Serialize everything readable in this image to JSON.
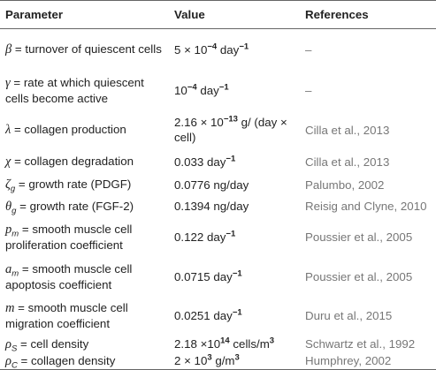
{
  "table": {
    "headers": [
      "Parameter",
      "Value",
      "References"
    ],
    "rows": [
      {
        "parameter": [
          {
            "i": "β"
          },
          {
            "text": " = turnover of quiescent cells"
          }
        ],
        "value": [
          {
            "text": "5 × 10"
          },
          {
            "sup": "−4"
          },
          {
            "text": " day"
          },
          {
            "sup": "−1"
          }
        ],
        "reference": "–"
      },
      {
        "parameter": [
          {
            "i": "γ"
          },
          {
            "text": " = rate at which quiescent cells become active"
          }
        ],
        "value": [
          {
            "text": "10"
          },
          {
            "sup": "−4"
          },
          {
            "text": " day"
          },
          {
            "sup": "−1"
          }
        ],
        "reference": "–"
      },
      {
        "parameter": [
          {
            "i": "λ"
          },
          {
            "text": " = collagen production"
          }
        ],
        "value": [
          {
            "text": "2.16 × 10"
          },
          {
            "sup": "−13"
          },
          {
            "text": " g/ (day × cell)"
          }
        ],
        "reference": "Cilla et al., 2013"
      },
      {
        "parameter": [
          {
            "i": "χ"
          },
          {
            "text": " = collagen degradation"
          }
        ],
        "value": [
          {
            "text": "0.033 day"
          },
          {
            "sup": "−1"
          }
        ],
        "reference": "Cilla et al., 2013"
      },
      {
        "parameter": [
          {
            "i": "ζ"
          },
          {
            "sub": "g"
          },
          {
            "text": " = growth rate (PDGF)"
          }
        ],
        "value": [
          {
            "text": "0.0776 ng/day"
          }
        ],
        "reference": "Palumbo, 2002"
      },
      {
        "parameter": [
          {
            "i": "θ"
          },
          {
            "sub": "g"
          },
          {
            "text": " = growth rate (FGF-2)"
          }
        ],
        "value": [
          {
            "text": "0.1394 ng/day"
          }
        ],
        "reference": "Reisig and Clyne, 2010"
      },
      {
        "parameter": [
          {
            "i": "p"
          },
          {
            "sub": "m"
          },
          {
            "text": " = smooth muscle cell proliferation coefficient"
          }
        ],
        "value": [
          {
            "text": "0.122 day"
          },
          {
            "sup": "−1"
          }
        ],
        "reference": "Poussier et al., 2005"
      },
      {
        "parameter": [
          {
            "i": "a"
          },
          {
            "sub": "m"
          },
          {
            "text": " = smooth muscle cell apoptosis coefficient"
          }
        ],
        "value": [
          {
            "text": "0.0715 day"
          },
          {
            "sup": "−1"
          }
        ],
        "reference": "Poussier et al., 2005"
      },
      {
        "parameter": [
          {
            "i": "m"
          },
          {
            "text": " = smooth muscle cell migration coefficient"
          }
        ],
        "value": [
          {
            "text": "0.0251 day"
          },
          {
            "sup": "−1"
          }
        ],
        "reference": "Duru et al., 2015"
      },
      {
        "parameter": [
          {
            "i": "ρ"
          },
          {
            "sub": "S"
          },
          {
            "text": " = cell density"
          }
        ],
        "value": [
          {
            "text": "2.18 ×10"
          },
          {
            "sup": "14"
          },
          {
            "text": " cells/m"
          },
          {
            "sup": "3"
          }
        ],
        "reference": "Schwartz et al., 1992"
      },
      {
        "parameter": [
          {
            "i": "ρ"
          },
          {
            "sub": "C"
          },
          {
            "text": " = collagen density"
          }
        ],
        "value": [
          {
            "text": "2 × 10"
          },
          {
            "sup": "3"
          },
          {
            "text": " g/m"
          },
          {
            "sup": "3"
          }
        ],
        "reference": "Humphrey, 2002"
      }
    ]
  }
}
